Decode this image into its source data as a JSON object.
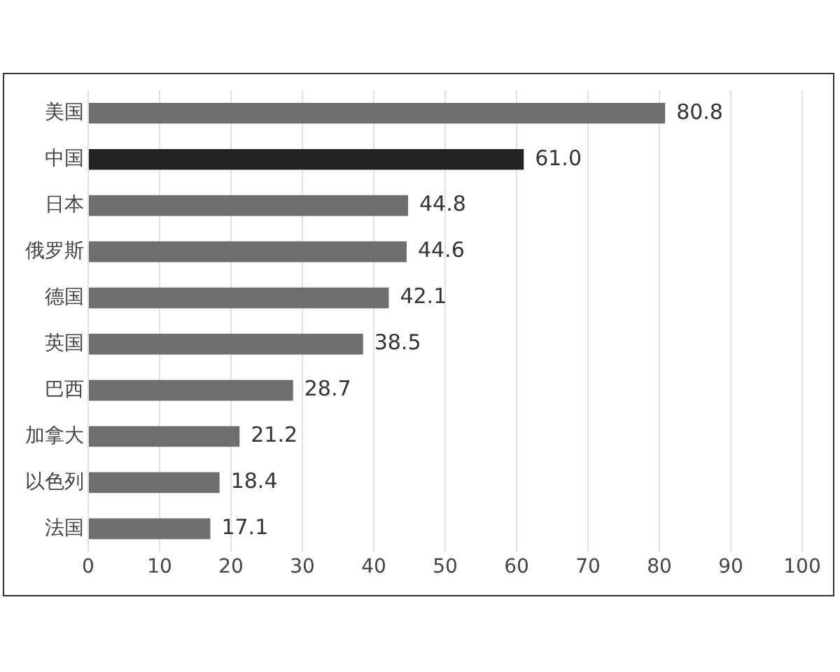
{
  "chart_data": {
    "type": "bar",
    "orientation": "horizontal",
    "categories": [
      "美国",
      "中国",
      "日本",
      "俄罗斯",
      "德国",
      "英国",
      "巴西",
      "加拿大",
      "以色列",
      "法国"
    ],
    "values": [
      80.8,
      61.0,
      44.8,
      44.6,
      42.1,
      38.5,
      28.7,
      21.2,
      18.4,
      17.1
    ],
    "colors": [
      "#6e6e6e",
      "#232323",
      "#6e6e6e",
      "#6e6e6e",
      "#6e6e6e",
      "#6e6e6e",
      "#6e6e6e",
      "#6e6e6e",
      "#6e6e6e",
      "#6e6e6e"
    ],
    "value_labels": [
      "80.8",
      "61.0",
      "44.8",
      "44.6",
      "42.1",
      "38.5",
      "28.7",
      "21.2",
      "18.4",
      "17.1"
    ],
    "xlim": [
      0,
      100
    ],
    "xticks": [
      0,
      10,
      20,
      30,
      40,
      50,
      60,
      70,
      80,
      90,
      100
    ],
    "grid": "x",
    "legend": false
  }
}
